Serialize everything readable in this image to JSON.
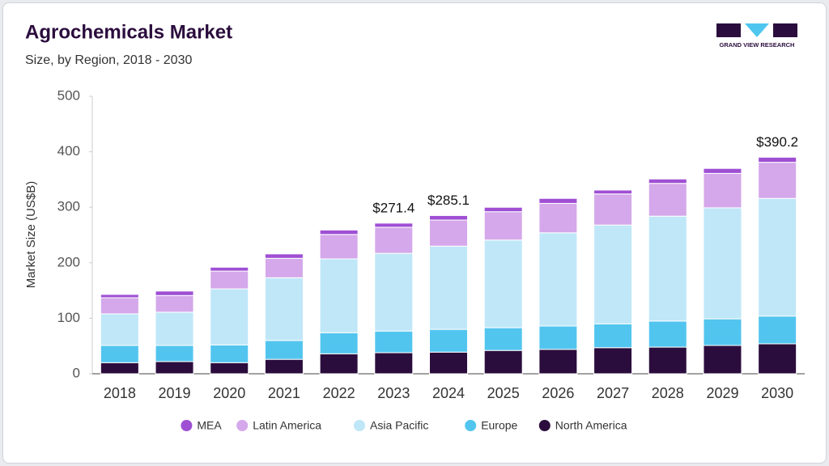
{
  "chart_data": {
    "type": "stacked_bar",
    "title": "Agrochemicals Market",
    "subtitle": "Size, by Region, 2018 - 2030",
    "ylabel": "Market Size (US$B)",
    "logo": "GRAND VIEW RESEARCH",
    "categories": [
      "2018",
      "2019",
      "2020",
      "2021",
      "2022",
      "2023",
      "2024",
      "2025",
      "2026",
      "2027",
      "2028",
      "2029",
      "2030"
    ],
    "series": [
      {
        "name": "North America",
        "color": "#2b0d3d",
        "values": [
          20,
          22,
          20,
          26,
          36,
          38,
          39,
          42,
          44,
          47,
          48,
          51,
          54
        ]
      },
      {
        "name": "Europe",
        "color": "#52c5ef",
        "values": [
          31,
          29,
          32,
          34,
          38,
          39,
          41,
          41,
          42,
          43,
          47,
          48,
          50
        ]
      },
      {
        "name": "Asia Pacific",
        "color": "#bfe7f8",
        "values": [
          57,
          60,
          101,
          113,
          133,
          140,
          150,
          158,
          168,
          178,
          189,
          200,
          212
        ]
      },
      {
        "name": "Latin America",
        "color": "#d4a8ea",
        "values": [
          29,
          30,
          32,
          35,
          44,
          47,
          47,
          51,
          53,
          56,
          59,
          62,
          65
        ]
      },
      {
        "name": "MEA",
        "color": "#9f4fd4",
        "values": [
          6,
          8,
          7,
          8,
          8,
          7.4,
          8.1,
          8,
          9,
          7,
          8,
          9,
          9.2
        ]
      }
    ],
    "totals": {
      "categories": [
        "2023",
        "2024",
        "2030"
      ],
      "values": [
        271.4,
        285.1,
        390.2
      ],
      "value_labels": [
        "$271.4",
        "$285.1",
        "$390.2"
      ]
    },
    "ylim": [
      0,
      500
    ],
    "yticks": [
      0,
      100,
      200,
      300,
      400,
      500
    ]
  }
}
